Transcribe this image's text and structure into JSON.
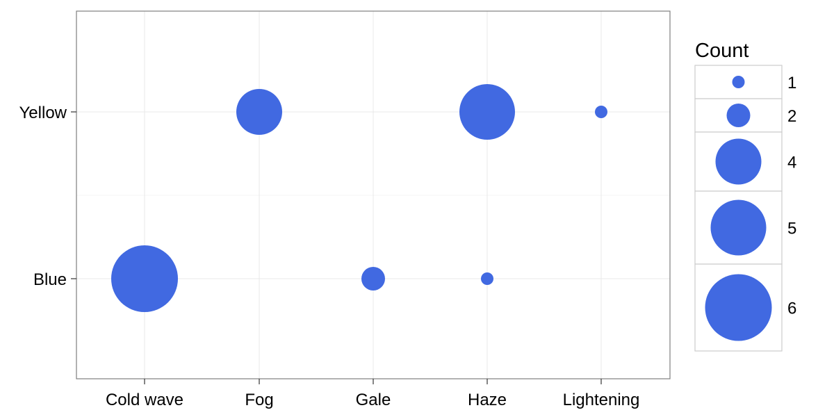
{
  "chart_data": {
    "type": "scatter",
    "x_categories": [
      "Cold wave",
      "Fog",
      "Gale",
      "Haze",
      "Lightening"
    ],
    "y_categories": [
      "Blue",
      "Yellow"
    ],
    "points": [
      {
        "x": "Cold wave",
        "y": "Blue",
        "count": 6
      },
      {
        "x": "Fog",
        "y": "Yellow",
        "count": 4
      },
      {
        "x": "Gale",
        "y": "Blue",
        "count": 2
      },
      {
        "x": "Haze",
        "y": "Yellow",
        "count": 5
      },
      {
        "x": "Haze",
        "y": "Blue",
        "count": 1
      },
      {
        "x": "Lightening",
        "y": "Yellow",
        "count": 1
      }
    ],
    "legend": {
      "title": "Count",
      "values": [
        1,
        2,
        4,
        5,
        6
      ],
      "position": "right"
    },
    "xlabel": "",
    "ylabel": "",
    "grid": true,
    "marker_color": "#4169E1"
  }
}
